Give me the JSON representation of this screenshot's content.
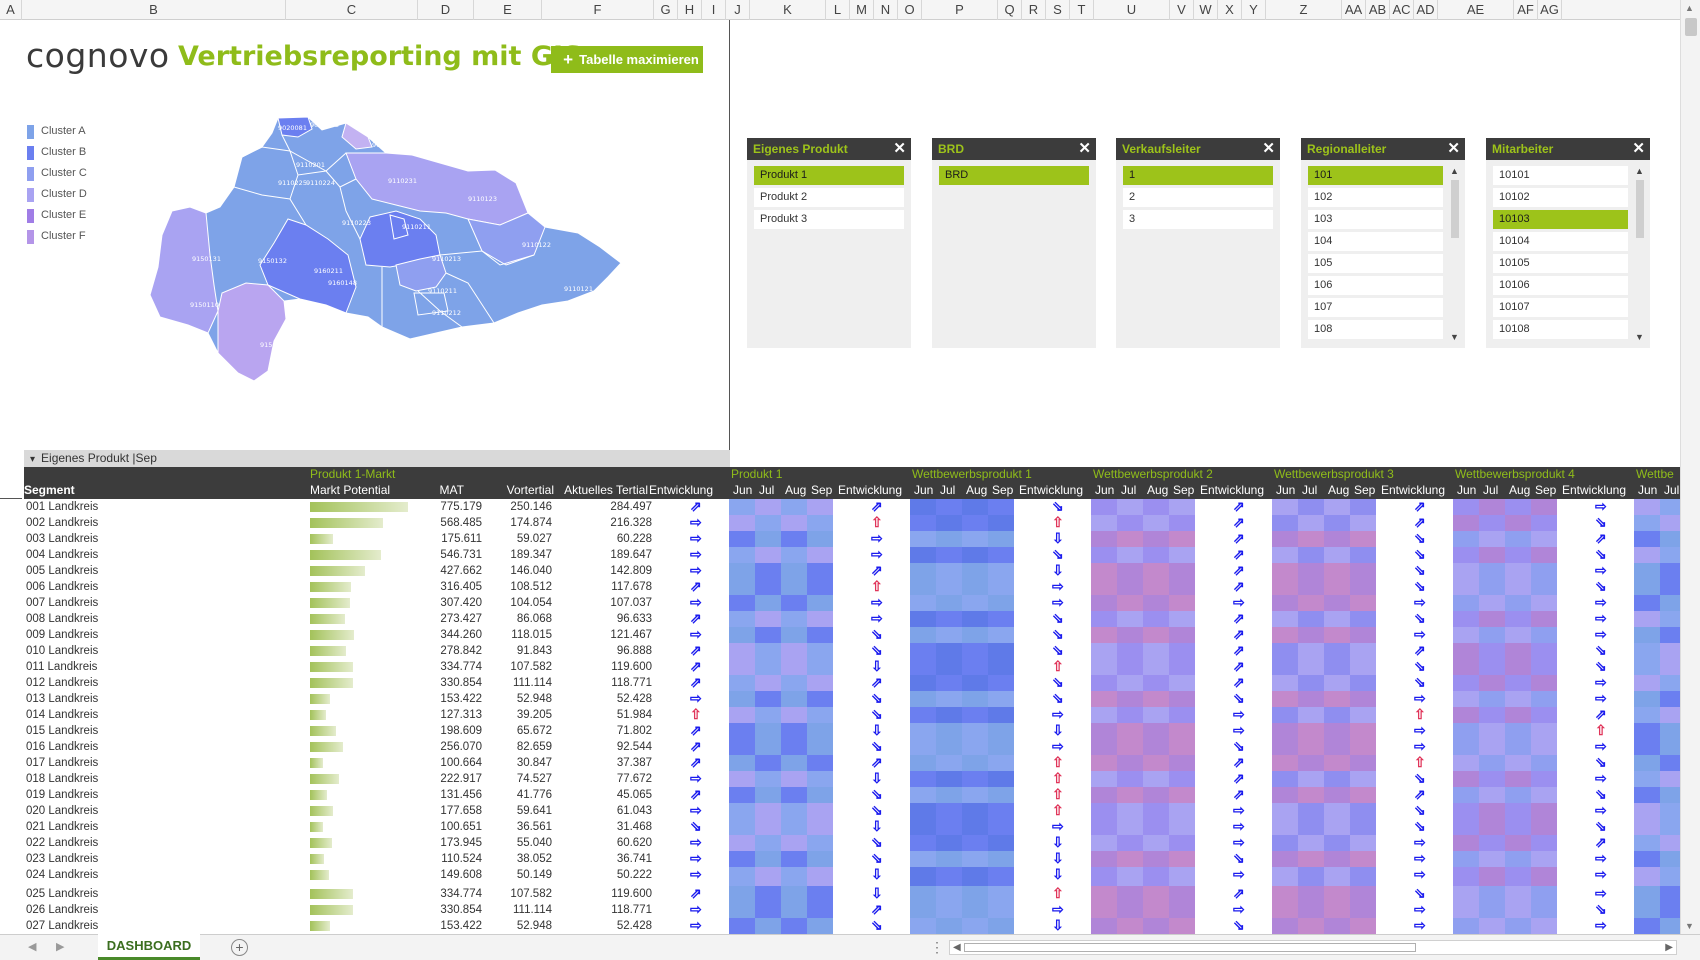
{
  "colors": {
    "accent": "#8fbc1a",
    "slicer_selected": "#9dc31a",
    "dark_header": "#3c3c3c",
    "arrow_blue": "#1a1aee",
    "arrow_red": "#e0355a"
  },
  "column_headers": [
    "A",
    "B",
    "C",
    "D",
    "E",
    "F",
    "G",
    "H",
    "I",
    "J",
    "K",
    "L",
    "M",
    "N",
    "O",
    "P",
    "Q",
    "R",
    "S",
    "T",
    "U",
    "V",
    "W",
    "X",
    "Y",
    "Z",
    "AA",
    "AB",
    "AC",
    "AD",
    "AE",
    "AF",
    "AG"
  ],
  "brand": {
    "logo": "cognovo",
    "title": "Vertriebsreporting mit GIS",
    "maximize_button": "Tabelle maximieren"
  },
  "legend": [
    {
      "label": "Cluster A",
      "color": "#7ea3e8"
    },
    {
      "label": "Cluster B",
      "color": "#6b7ff0"
    },
    {
      "label": "Cluster C",
      "color": "#8f9ff0"
    },
    {
      "label": "Cluster D",
      "color": "#a9a3f2"
    },
    {
      "label": "Cluster E",
      "color": "#a07de6"
    },
    {
      "label": "Cluster F",
      "color": "#b495e8"
    }
  ],
  "map_labels": [
    "9020081",
    "9020203",
    "9021021",
    "9110201",
    "9110225",
    "9110224",
    "9110231",
    "9110123",
    "9110223",
    "9110211",
    "9110122",
    "9150131",
    "9150132",
    "9160211",
    "9110213",
    "9160148",
    "9110211",
    "9110121",
    "9150110",
    "9110212",
    "9150150"
  ],
  "slicers": [
    {
      "title": "Eigenes Produkt",
      "items": [
        "Produkt 1",
        "Produkt 2",
        "Produkt 3"
      ],
      "selected": 0,
      "scroll": false
    },
    {
      "title": "BRD",
      "items": [
        "BRD"
      ],
      "selected": 0,
      "scroll": false
    },
    {
      "title": "Verkaufsleiter",
      "items": [
        "1",
        "2",
        "3"
      ],
      "selected": 0,
      "scroll": false
    },
    {
      "title": "Regionalleiter",
      "items": [
        "101",
        "102",
        "103",
        "104",
        "105",
        "106",
        "107",
        "108"
      ],
      "selected": 0,
      "scroll": true
    },
    {
      "title": "Mitarbeiter",
      "items": [
        "10101",
        "10102",
        "10103",
        "10104",
        "10105",
        "10106",
        "10107",
        "10108"
      ],
      "selected": 2,
      "scroll": true
    }
  ],
  "table": {
    "group_label": "Eigenes Produkt |Sep",
    "market_group": "Produkt 1-Markt",
    "col_segment": "Segment",
    "col_potential": "Markt Potential",
    "col_mat": "MAT",
    "col_vortertial": "Vortertial",
    "col_aktuell": "Aktuelles Tertial",
    "col_entwicklung": "Entwicklung",
    "months": [
      "Jun",
      "Jul",
      "Aug",
      "Sep"
    ],
    "product_groups": [
      "Produkt 1",
      "Wettbewerbsprodukt 1",
      "Wettbewerbsprodukt 2",
      "Wettbewerbsprodukt 3",
      "Wettbewerbsprodukt 4",
      "Wettbe"
    ],
    "rows": [
      {
        "seg": "001 Landkreis",
        "mat": "775.179",
        "vor": "250.146",
        "akt": "284.497",
        "pot": 0.98
      },
      {
        "seg": "002 Landkreis",
        "mat": "568.485",
        "vor": "174.874",
        "akt": "216.328",
        "pot": 0.73
      },
      {
        "seg": "003 Landkreis",
        "mat": "175.611",
        "vor": "59.027",
        "akt": "60.228",
        "pot": 0.23
      },
      {
        "seg": "004 Landkreis",
        "mat": "546.731",
        "vor": "189.347",
        "akt": "189.647",
        "pot": 0.71
      },
      {
        "seg": "005 Landkreis",
        "mat": "427.662",
        "vor": "146.040",
        "akt": "142.809",
        "pot": 0.55
      },
      {
        "seg": "006 Landkreis",
        "mat": "316.405",
        "vor": "108.512",
        "akt": "117.678",
        "pot": 0.41
      },
      {
        "seg": "007 Landkreis",
        "mat": "307.420",
        "vor": "104.054",
        "akt": "107.037",
        "pot": 0.4
      },
      {
        "seg": "008 Landkreis",
        "mat": "273.427",
        "vor": "86.068",
        "akt": "96.633",
        "pot": 0.35
      },
      {
        "seg": "009 Landkreis",
        "mat": "344.260",
        "vor": "118.015",
        "akt": "121.467",
        "pot": 0.44
      },
      {
        "seg": "010 Landkreis",
        "mat": "278.842",
        "vor": "91.843",
        "akt": "96.888",
        "pot": 0.36
      },
      {
        "seg": "011 Landkreis",
        "mat": "334.774",
        "vor": "107.582",
        "akt": "119.600",
        "pot": 0.43
      },
      {
        "seg": "012 Landkreis",
        "mat": "330.854",
        "vor": "111.114",
        "akt": "118.771",
        "pot": 0.43
      },
      {
        "seg": "013 Landkreis",
        "mat": "153.422",
        "vor": "52.948",
        "akt": "52.428",
        "pot": 0.2
      },
      {
        "seg": "014 Landkreis",
        "mat": "127.313",
        "vor": "39.205",
        "akt": "51.984",
        "pot": 0.16
      },
      {
        "seg": "015 Landkreis",
        "mat": "198.609",
        "vor": "65.672",
        "akt": "71.802",
        "pot": 0.26
      },
      {
        "seg": "016 Landkreis",
        "mat": "256.070",
        "vor": "82.659",
        "akt": "92.544",
        "pot": 0.33
      },
      {
        "seg": "017 Landkreis",
        "mat": "100.664",
        "vor": "30.847",
        "akt": "37.387",
        "pot": 0.13
      },
      {
        "seg": "018 Landkreis",
        "mat": "222.917",
        "vor": "74.527",
        "akt": "77.672",
        "pot": 0.29
      },
      {
        "seg": "019 Landkreis",
        "mat": "131.456",
        "vor": "41.776",
        "akt": "45.065",
        "pot": 0.17
      },
      {
        "seg": "020 Landkreis",
        "mat": "177.658",
        "vor": "59.641",
        "akt": "61.043",
        "pot": 0.23
      },
      {
        "seg": "021 Landkreis",
        "mat": "100.651",
        "vor": "36.561",
        "akt": "31.468",
        "pot": 0.13
      },
      {
        "seg": "022 Landkreis",
        "mat": "173.945",
        "vor": "55.040",
        "akt": "60.620",
        "pot": 0.22
      },
      {
        "seg": "023 Landkreis",
        "mat": "110.524",
        "vor": "38.052",
        "akt": "36.741",
        "pot": 0.14
      },
      {
        "seg": "024 Landkreis",
        "mat": "149.608",
        "vor": "50.149",
        "akt": "50.222",
        "pot": 0.19
      },
      {
        "seg": "025 Landkreis",
        "mat": "334.774",
        "vor": "107.582",
        "akt": "119.600",
        "pot": 0.43
      },
      {
        "seg": "026 Landkreis",
        "mat": "330.854",
        "vor": "111.114",
        "akt": "118.771",
        "pot": 0.43
      },
      {
        "seg": "027 Landkreis",
        "mat": "153.422",
        "vor": "52.948",
        "akt": "52.428",
        "pot": 0.2
      }
    ],
    "arrows": [
      [
        "ne",
        "ne",
        "se",
        "ne",
        "ne",
        "e"
      ],
      [
        "e",
        "n",
        "n",
        "ne",
        "ne",
        "se"
      ],
      [
        "e",
        "e",
        "s",
        "ne",
        "se",
        "ne"
      ],
      [
        "e",
        "e",
        "se",
        "ne",
        "se",
        "se"
      ],
      [
        "e",
        "ne",
        "s",
        "ne",
        "se",
        "e"
      ],
      [
        "ne",
        "n",
        "e",
        "ne",
        "se",
        "se"
      ],
      [
        "e",
        "e",
        "e",
        "e",
        "e",
        "e"
      ],
      [
        "ne",
        "e",
        "se",
        "ne",
        "se",
        "e"
      ],
      [
        "e",
        "se",
        "se",
        "ne",
        "e",
        "e"
      ],
      [
        "ne",
        "se",
        "se",
        "ne",
        "ne",
        "se"
      ],
      [
        "ne",
        "s",
        "n",
        "ne",
        "se",
        "se"
      ],
      [
        "ne",
        "ne",
        "se",
        "ne",
        "se",
        "e"
      ],
      [
        "e",
        "se",
        "se",
        "se",
        "e",
        "e"
      ],
      [
        "n",
        "se",
        "e",
        "e",
        "n",
        "ne"
      ],
      [
        "ne",
        "s",
        "s",
        "e",
        "e",
        "n"
      ],
      [
        "ne",
        "se",
        "e",
        "se",
        "e",
        "e"
      ],
      [
        "ne",
        "ne",
        "n",
        "ne",
        "n",
        "se"
      ],
      [
        "e",
        "s",
        "n",
        "ne",
        "se",
        "e"
      ],
      [
        "ne",
        "se",
        "n",
        "ne",
        "ne",
        "se"
      ],
      [
        "e",
        "se",
        "n",
        "e",
        "se",
        "e"
      ],
      [
        "se",
        "s",
        "e",
        "e",
        "se",
        "se"
      ],
      [
        "e",
        "se",
        "s",
        "e",
        "e",
        "ne"
      ],
      [
        "e",
        "se",
        "s",
        "se",
        "e",
        "e"
      ],
      [
        "e",
        "s",
        "s",
        "e",
        "e",
        "e"
      ],
      [
        "ne",
        "s",
        "n",
        "ne",
        "se",
        "e"
      ],
      [
        "e",
        "ne",
        "e",
        "e",
        "e",
        "se"
      ],
      [
        "e",
        "se",
        "s",
        "se",
        "e",
        "e"
      ]
    ]
  },
  "sheet_tab": "DASHBOARD"
}
